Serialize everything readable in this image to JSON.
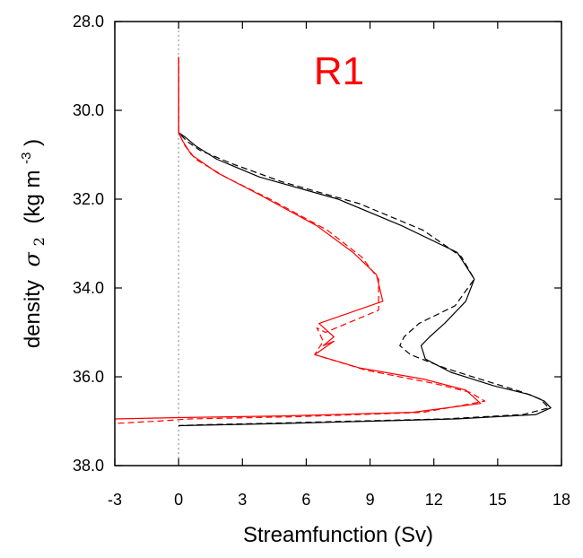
{
  "colors": {
    "black": "#000000",
    "red": "#ff0000",
    "zero_line": "#999999"
  },
  "chart_data": {
    "type": "line",
    "title": "R1",
    "xlabel": "Streamfunction (Sv)",
    "ylabel": {
      "prefix": "density",
      "symbol": "σ",
      "subscript": "2",
      "unit": "(kg m",
      "exponent": "-3",
      "close": ")"
    },
    "xlim": [
      -3,
      18
    ],
    "ylim": [
      28.0,
      38.0
    ],
    "y_inverted": true,
    "x_ticks": [
      -3,
      0,
      3,
      6,
      9,
      12,
      15,
      18
    ],
    "x_tick_labels": [
      "-3",
      "0",
      "3",
      "6",
      "9",
      "12",
      "15",
      "18"
    ],
    "y_ticks": [
      28,
      30,
      32,
      34,
      36,
      38
    ],
    "y_tick_labels": [
      "28.0",
      "30.0",
      "32.0",
      "34.0",
      "36.0",
      "38.0"
    ],
    "zero_line": {
      "x": 0,
      "style": "dotted"
    },
    "legend": "none",
    "series": [
      {
        "color": "#000000",
        "dash": "solid",
        "points": [
          [
            0,
            28.8
          ],
          [
            0,
            30.2
          ],
          [
            0,
            30.5
          ],
          [
            0.3,
            30.6
          ],
          [
            0.8,
            30.8
          ],
          [
            1.8,
            31.1
          ],
          [
            3.8,
            31.5
          ],
          [
            7.5,
            32.0
          ],
          [
            10.5,
            32.6
          ],
          [
            13.1,
            33.2
          ],
          [
            13.9,
            33.8
          ],
          [
            13.5,
            34.3
          ],
          [
            12.5,
            34.8
          ],
          [
            11.8,
            35.1
          ],
          [
            11.4,
            35.3
          ],
          [
            11.6,
            35.6
          ],
          [
            12.8,
            35.9
          ],
          [
            14.8,
            36.2
          ],
          [
            16.5,
            36.4
          ],
          [
            17.2,
            36.55
          ],
          [
            17.5,
            36.7
          ],
          [
            16.8,
            36.85
          ],
          [
            13.0,
            36.95
          ],
          [
            9.0,
            37.0
          ],
          [
            5.0,
            37.05
          ],
          [
            2.0,
            37.08
          ],
          [
            0,
            37.1
          ]
        ]
      },
      {
        "color": "#000000",
        "dash": "dashed",
        "points": [
          [
            0,
            28.8
          ],
          [
            0,
            30.2
          ],
          [
            0,
            30.5
          ],
          [
            0.4,
            30.7
          ],
          [
            1.0,
            30.9
          ],
          [
            2.5,
            31.2
          ],
          [
            4.8,
            31.6
          ],
          [
            8.5,
            32.1
          ],
          [
            11.5,
            32.7
          ],
          [
            13.3,
            33.3
          ],
          [
            13.9,
            33.8
          ],
          [
            13.0,
            34.4
          ],
          [
            11.3,
            34.8
          ],
          [
            10.6,
            35.1
          ],
          [
            10.4,
            35.3
          ],
          [
            10.9,
            35.5
          ],
          [
            12.5,
            35.8
          ],
          [
            14.5,
            36.1
          ],
          [
            16.2,
            36.35
          ],
          [
            17.0,
            36.5
          ],
          [
            17.4,
            36.7
          ],
          [
            16.2,
            36.85
          ],
          [
            12.5,
            36.95
          ],
          [
            8.0,
            37.0
          ],
          [
            4.0,
            37.05
          ],
          [
            1.0,
            37.08
          ],
          [
            0,
            37.1
          ]
        ]
      },
      {
        "color": "#ff0000",
        "dash": "solid",
        "points": [
          [
            0,
            28.8
          ],
          [
            0,
            30.2
          ],
          [
            0,
            30.5
          ],
          [
            0.2,
            30.7
          ],
          [
            0.6,
            31.0
          ],
          [
            1.8,
            31.4
          ],
          [
            3.8,
            31.9
          ],
          [
            6.5,
            32.6
          ],
          [
            8.2,
            33.2
          ],
          [
            9.3,
            33.7
          ],
          [
            9.6,
            34.3
          ],
          [
            6.6,
            34.8
          ],
          [
            7.3,
            35.1
          ],
          [
            6.8,
            35.3
          ],
          [
            7.3,
            35.2
          ],
          [
            6.4,
            35.5
          ],
          [
            8.5,
            35.8
          ],
          [
            11.5,
            36.05
          ],
          [
            13.5,
            36.3
          ],
          [
            14.2,
            36.6
          ],
          [
            11.0,
            36.8
          ],
          [
            5.0,
            36.88
          ],
          [
            0,
            36.92
          ],
          [
            -3,
            36.95
          ]
        ]
      },
      {
        "color": "#ff0000",
        "dash": "dashed",
        "points": [
          [
            0,
            28.8
          ],
          [
            0,
            30.2
          ],
          [
            0,
            30.5
          ],
          [
            0.3,
            30.8
          ],
          [
            0.8,
            31.1
          ],
          [
            2.2,
            31.5
          ],
          [
            4.3,
            32.0
          ],
          [
            7.0,
            32.7
          ],
          [
            8.6,
            33.3
          ],
          [
            9.4,
            33.8
          ],
          [
            9.4,
            34.5
          ],
          [
            6.9,
            35.0
          ],
          [
            6.5,
            34.9
          ],
          [
            6.8,
            35.2
          ],
          [
            6.4,
            35.5
          ],
          [
            8.8,
            35.85
          ],
          [
            12.0,
            36.15
          ],
          [
            13.7,
            36.35
          ],
          [
            14.4,
            36.55
          ],
          [
            11.5,
            36.8
          ],
          [
            5.5,
            36.9
          ],
          [
            0.5,
            36.95
          ],
          [
            -1.0,
            37.0
          ],
          [
            -3,
            37.05
          ]
        ]
      }
    ]
  }
}
